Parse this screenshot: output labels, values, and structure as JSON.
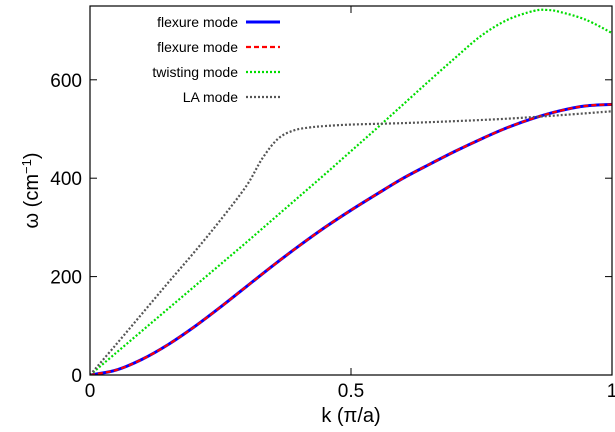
{
  "chart_data": {
    "type": "line",
    "xlabel": "k (π/a)",
    "ylabel": "ω (cm⁻¹)",
    "ylabel_base": "ω (cm",
    "ylabel_sup": "−1",
    "ylabel_end": ")",
    "xlim": [
      0,
      1
    ],
    "ylim": [
      0,
      750
    ],
    "xticks": [
      0,
      0.5,
      1
    ],
    "xtick_labels": [
      "0",
      "0.5",
      "1"
    ],
    "yticks": [
      0,
      200,
      400,
      600
    ],
    "ytick_labels": [
      "0",
      "200",
      "400",
      "600"
    ],
    "grid": false,
    "legend_position": "top-left",
    "series": [
      {
        "name": "flexure mode",
        "color": "#0000ff",
        "style": "solid",
        "x": [
          0,
          0.05,
          0.1,
          0.15,
          0.2,
          0.25,
          0.3,
          0.35,
          0.4,
          0.45,
          0.5,
          0.55,
          0.6,
          0.65,
          0.7,
          0.75,
          0.8,
          0.85,
          0.9,
          0.95,
          1.0
        ],
        "y": [
          0,
          10,
          32,
          62,
          98,
          138,
          180,
          222,
          262,
          300,
          335,
          368,
          400,
          428,
          455,
          480,
          503,
          522,
          537,
          547,
          550
        ]
      },
      {
        "name": "flexure mode",
        "color": "#ff0000",
        "style": "dashed",
        "x": [
          0,
          0.05,
          0.1,
          0.15,
          0.2,
          0.25,
          0.3,
          0.35,
          0.4,
          0.45,
          0.5,
          0.55,
          0.6,
          0.65,
          0.7,
          0.75,
          0.8,
          0.85,
          0.9,
          0.95,
          1.0
        ],
        "y": [
          0,
          10,
          32,
          62,
          98,
          138,
          180,
          222,
          262,
          300,
          335,
          368,
          400,
          428,
          455,
          480,
          503,
          522,
          537,
          547,
          550
        ]
      },
      {
        "name": "twisting mode",
        "color": "#00dd00",
        "style": "dotted",
        "x": [
          0,
          0.05,
          0.1,
          0.15,
          0.2,
          0.25,
          0.3,
          0.35,
          0.4,
          0.45,
          0.5,
          0.55,
          0.6,
          0.65,
          0.7,
          0.75,
          0.8,
          0.85,
          0.875,
          0.9,
          0.95,
          1.0
        ],
        "y": [
          0,
          45,
          90,
          135,
          180,
          225,
          270,
          316,
          362,
          408,
          455,
          502,
          550,
          598,
          645,
          690,
          722,
          740,
          742,
          738,
          722,
          695
        ]
      },
      {
        "name": "LA mode",
        "color": "#555555",
        "style": "dotted",
        "x": [
          0,
          0.05,
          0.1,
          0.15,
          0.2,
          0.25,
          0.3,
          0.33,
          0.36,
          0.39,
          0.42,
          0.45,
          0.5,
          0.6,
          0.7,
          0.8,
          0.9,
          1.0
        ],
        "y": [
          0,
          62,
          125,
          188,
          250,
          315,
          385,
          440,
          480,
          497,
          503,
          506,
          509,
          512,
          516,
          521,
          528,
          536
        ]
      }
    ]
  }
}
